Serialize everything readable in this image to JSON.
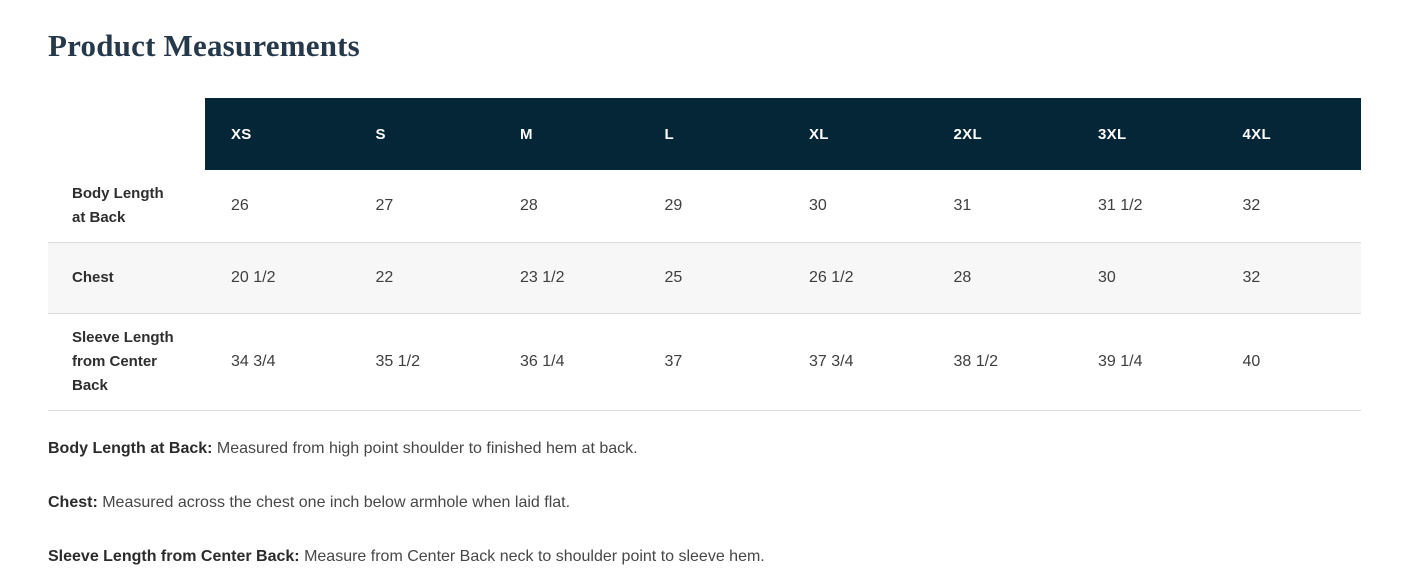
{
  "title": "Product Measurements",
  "table": {
    "sizes": [
      "XS",
      "S",
      "M",
      "L",
      "XL",
      "2XL",
      "3XL",
      "4XL"
    ],
    "rows": [
      {
        "label": "Body Length at Back",
        "values": [
          "26",
          "27",
          "28",
          "29",
          "30",
          "31",
          "31 1/2",
          "32"
        ]
      },
      {
        "label": "Chest",
        "values": [
          "20 1/2",
          "22",
          "23 1/2",
          "25",
          "26 1/2",
          "28",
          "30",
          "32"
        ]
      },
      {
        "label": "Sleeve Length from Center Back",
        "values": [
          "34 3/4",
          "35 1/2",
          "36 1/4",
          "37",
          "37 3/4",
          "38 1/2",
          "39 1/4",
          "40"
        ]
      }
    ]
  },
  "descriptions": [
    {
      "term": "Body Length at Back:",
      "text": "Measured from high point shoulder to finished hem at back."
    },
    {
      "term": "Chest:",
      "text": "Measured across the chest one inch below armhole when laid flat."
    },
    {
      "term": "Sleeve Length from Center Back:",
      "text": "Measure from Center Back neck to shoulder point to sleeve hem."
    }
  ],
  "colors": {
    "header_bg": "#052637",
    "title_color": "#26394a",
    "row_alt_bg": "#f7f7f7",
    "divider": "#dcdcdc"
  }
}
